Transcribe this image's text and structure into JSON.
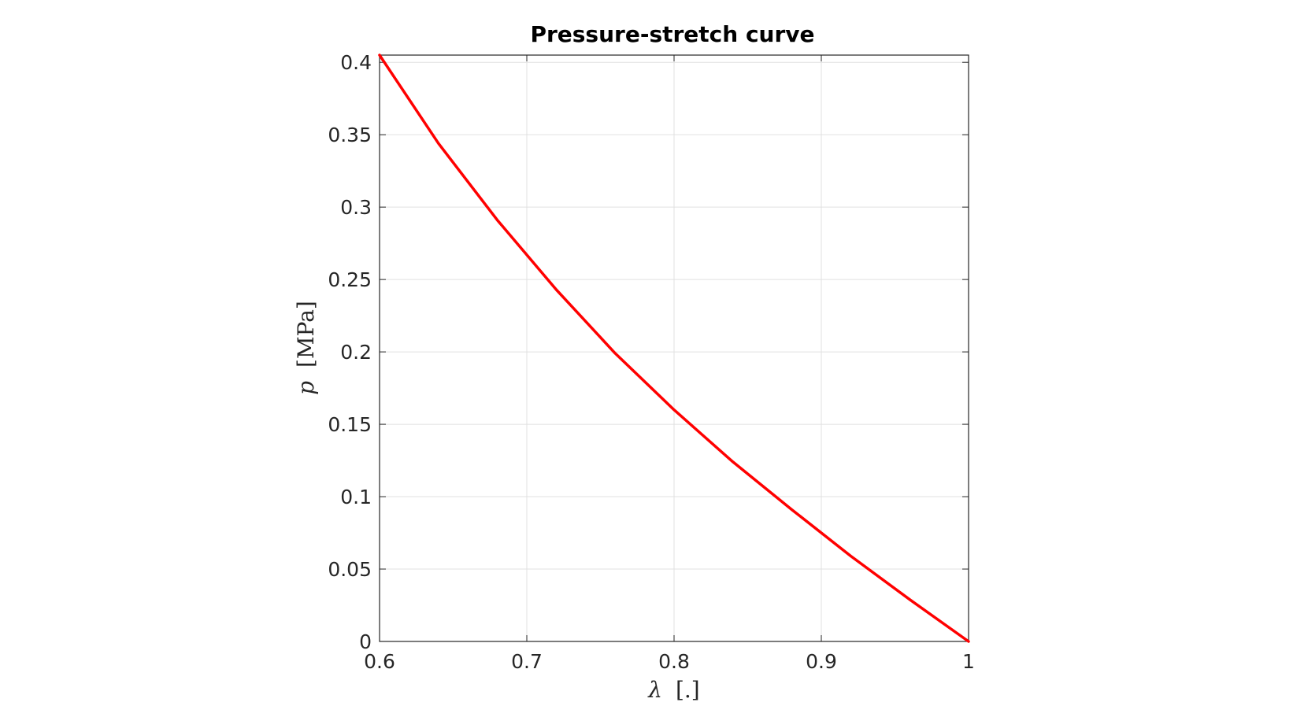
{
  "chart_data": {
    "type": "line",
    "title": "Pressure-stretch curve",
    "xlabel": {
      "symbol": "λ",
      "unit": "[.]"
    },
    "ylabel": {
      "symbol": "p",
      "unit": "[MPa]"
    },
    "xlim": [
      0.6,
      1.0
    ],
    "ylim": [
      0,
      0.405
    ],
    "grid": true,
    "xticks": [
      0.6,
      0.7,
      0.8,
      0.9,
      1.0
    ],
    "xtick_labels": [
      "0.6",
      "0.7",
      "0.8",
      "0.9",
      "1"
    ],
    "yticks": [
      0,
      0.05,
      0.1,
      0.15,
      0.2,
      0.25,
      0.3,
      0.35,
      0.4
    ],
    "ytick_labels": [
      "0",
      "0.05",
      "0.1",
      "0.15",
      "0.2",
      "0.25",
      "0.3",
      "0.35",
      "0.4"
    ],
    "series": [
      {
        "color": "#ff0000",
        "x": [
          0.6,
          0.64,
          0.68,
          0.72,
          0.76,
          0.8,
          0.84,
          0.88,
          0.92,
          0.96,
          1.0
        ],
        "y": [
          0.405,
          0.344,
          0.291,
          0.243,
          0.199,
          0.16,
          0.124,
          0.091,
          0.059,
          0.029,
          0.0
        ]
      }
    ]
  }
}
